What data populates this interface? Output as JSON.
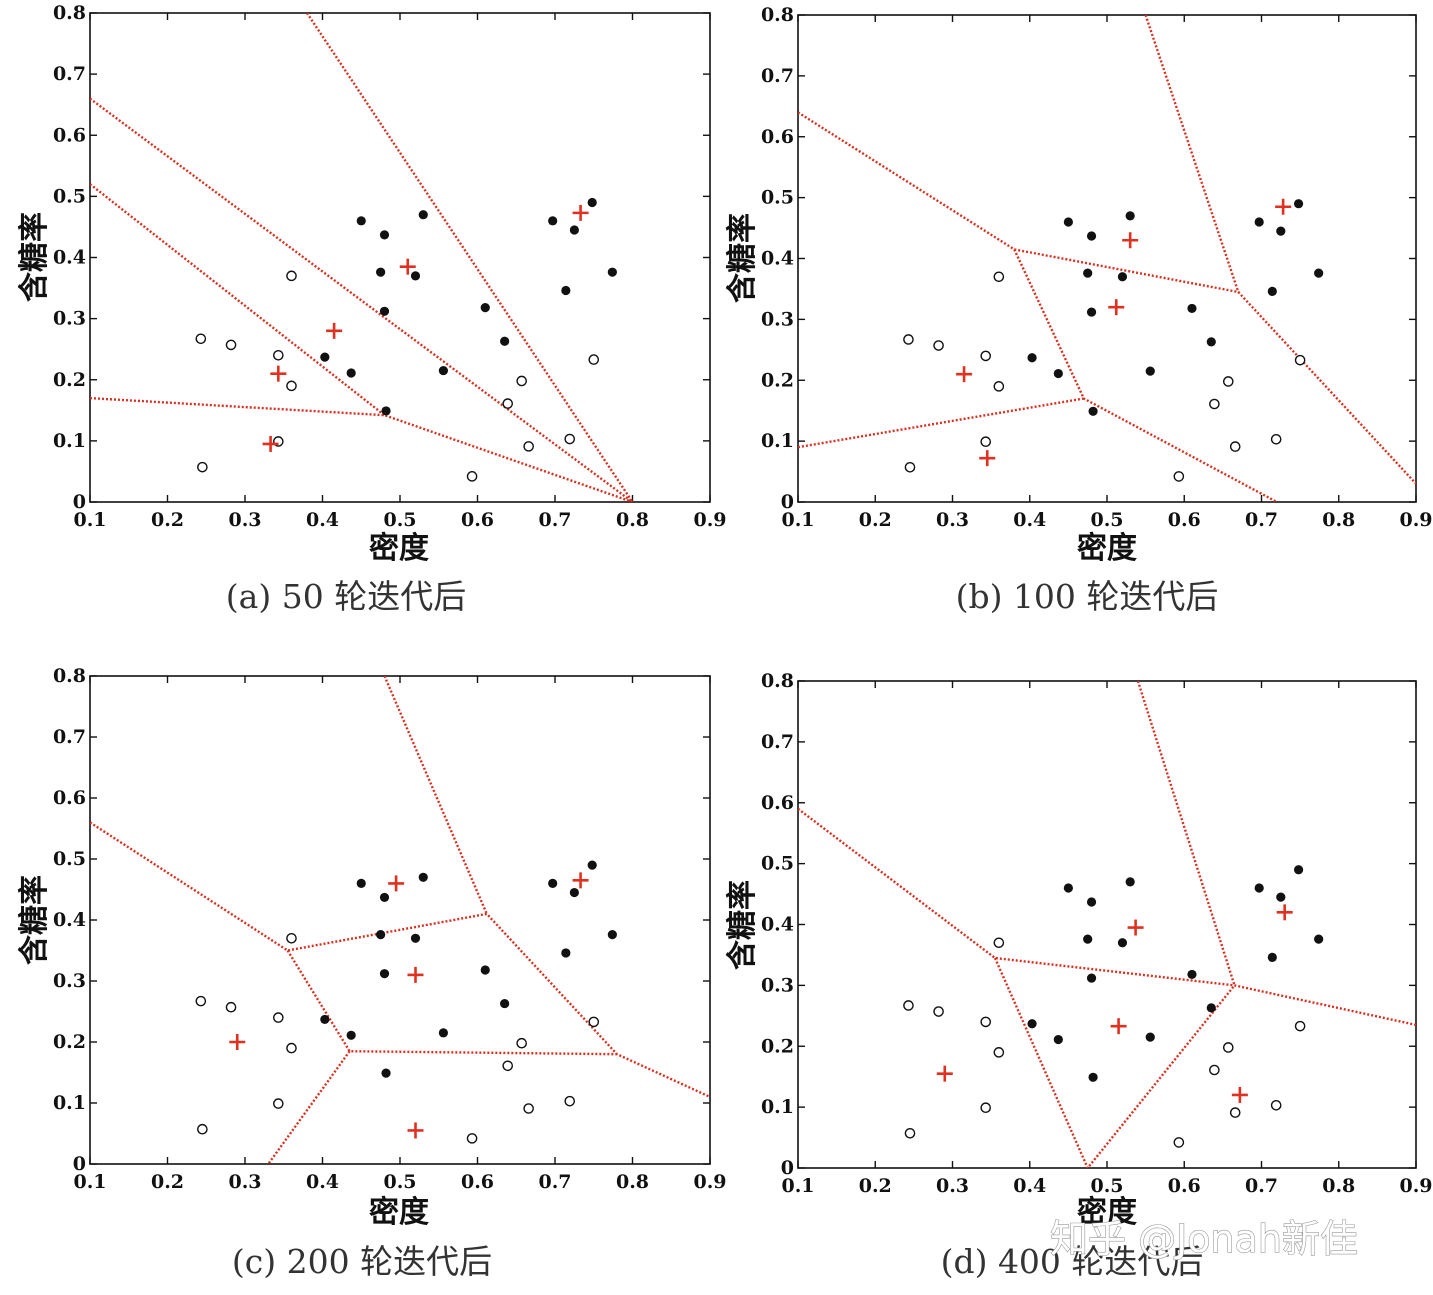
{
  "chart_data": [
    {
      "type": "scatter",
      "caption": "(a) 50 轮迭代后",
      "xlabel": "密度",
      "ylabel": "含糖率",
      "xlim": [
        0.1,
        0.9
      ],
      "ylim": [
        0,
        0.8
      ],
      "xticks": [
        "0.1",
        "0.2",
        "0.3",
        "0.4",
        "0.5",
        "0.6",
        "0.7",
        "0.8",
        "0.9"
      ],
      "yticks": [
        "0",
        "0.1",
        "0.2",
        "0.3",
        "0.4",
        "0.5",
        "0.6",
        "0.7",
        "0.8"
      ],
      "filled_points": [
        [
          0.45,
          0.46
        ],
        [
          0.48,
          0.437
        ],
        [
          0.53,
          0.47
        ],
        [
          0.475,
          0.376
        ],
        [
          0.52,
          0.37
        ],
        [
          0.48,
          0.312
        ],
        [
          0.61,
          0.318
        ],
        [
          0.635,
          0.263
        ],
        [
          0.403,
          0.237
        ],
        [
          0.437,
          0.211
        ],
        [
          0.556,
          0.215
        ],
        [
          0.482,
          0.149
        ],
        [
          0.697,
          0.46
        ],
        [
          0.725,
          0.445
        ],
        [
          0.748,
          0.49
        ],
        [
          0.714,
          0.346
        ],
        [
          0.774,
          0.376
        ]
      ],
      "open_points": [
        [
          0.243,
          0.267
        ],
        [
          0.282,
          0.257
        ],
        [
          0.36,
          0.37
        ],
        [
          0.343,
          0.24
        ],
        [
          0.36,
          0.19
        ],
        [
          0.245,
          0.057
        ],
        [
          0.343,
          0.099
        ],
        [
          0.593,
          0.042
        ],
        [
          0.657,
          0.198
        ],
        [
          0.639,
          0.161
        ],
        [
          0.666,
          0.091
        ],
        [
          0.719,
          0.103
        ],
        [
          0.75,
          0.233
        ]
      ],
      "centroids": [
        [
          0.343,
          0.21
        ],
        [
          0.333,
          0.095
        ],
        [
          0.415,
          0.28
        ],
        [
          0.51,
          0.385
        ],
        [
          0.733,
          0.473
        ]
      ],
      "boundaries": [
        [
          [
            0.1,
            0.17
          ],
          [
            0.48,
            0.142
          ],
          [
            0.8,
            0
          ]
        ],
        [
          [
            0.1,
            0.52
          ],
          [
            0.48,
            0.142
          ]
        ],
        [
          [
            0.1,
            0.66
          ],
          [
            0.8,
            0
          ]
        ],
        [
          [
            0.38,
            0.8
          ],
          [
            0.8,
            0
          ]
        ]
      ]
    },
    {
      "type": "scatter",
      "caption": "(b) 100 轮迭代后",
      "xlabel": "密度",
      "ylabel": "含糖率",
      "xlim": [
        0.1,
        0.9
      ],
      "ylim": [
        0,
        0.8
      ],
      "xticks": [
        "0.1",
        "0.2",
        "0.3",
        "0.4",
        "0.5",
        "0.6",
        "0.7",
        "0.8",
        "0.9"
      ],
      "yticks": [
        "0",
        "0.1",
        "0.2",
        "0.3",
        "0.4",
        "0.5",
        "0.6",
        "0.7",
        "0.8"
      ],
      "filled_points": [
        [
          0.45,
          0.46
        ],
        [
          0.48,
          0.437
        ],
        [
          0.53,
          0.47
        ],
        [
          0.475,
          0.376
        ],
        [
          0.52,
          0.37
        ],
        [
          0.48,
          0.312
        ],
        [
          0.61,
          0.318
        ],
        [
          0.635,
          0.263
        ],
        [
          0.403,
          0.237
        ],
        [
          0.437,
          0.211
        ],
        [
          0.556,
          0.215
        ],
        [
          0.482,
          0.149
        ],
        [
          0.697,
          0.46
        ],
        [
          0.725,
          0.445
        ],
        [
          0.748,
          0.49
        ],
        [
          0.714,
          0.346
        ],
        [
          0.774,
          0.376
        ]
      ],
      "open_points": [
        [
          0.243,
          0.267
        ],
        [
          0.282,
          0.257
        ],
        [
          0.36,
          0.37
        ],
        [
          0.343,
          0.24
        ],
        [
          0.36,
          0.19
        ],
        [
          0.245,
          0.057
        ],
        [
          0.343,
          0.099
        ],
        [
          0.593,
          0.042
        ],
        [
          0.657,
          0.198
        ],
        [
          0.639,
          0.161
        ],
        [
          0.666,
          0.091
        ],
        [
          0.719,
          0.103
        ],
        [
          0.75,
          0.233
        ]
      ],
      "centroids": [
        [
          0.315,
          0.21
        ],
        [
          0.345,
          0.072
        ],
        [
          0.512,
          0.32
        ],
        [
          0.53,
          0.43
        ],
        [
          0.728,
          0.485
        ]
      ],
      "boundaries": [
        [
          [
            0.1,
            0.64
          ],
          [
            0.38,
            0.415
          ],
          [
            0.67,
            0.345
          ],
          [
            0.9,
            0.03
          ]
        ],
        [
          [
            0.55,
            0.8
          ],
          [
            0.67,
            0.345
          ]
        ],
        [
          [
            0.38,
            0.415
          ],
          [
            0.47,
            0.17
          ],
          [
            0.72,
            0
          ]
        ],
        [
          [
            0.1,
            0.09
          ],
          [
            0.47,
            0.17
          ]
        ]
      ]
    },
    {
      "type": "scatter",
      "caption": "(c) 200 轮迭代后",
      "xlabel": "密度",
      "ylabel": "含糖率",
      "xlim": [
        0.1,
        0.9
      ],
      "ylim": [
        0,
        0.8
      ],
      "xticks": [
        "0.1",
        "0.2",
        "0.3",
        "0.4",
        "0.5",
        "0.6",
        "0.7",
        "0.8",
        "0.9"
      ],
      "yticks": [
        "0",
        "0.1",
        "0.2",
        "0.3",
        "0.4",
        "0.5",
        "0.6",
        "0.7",
        "0.8"
      ],
      "filled_points": [
        [
          0.45,
          0.46
        ],
        [
          0.48,
          0.437
        ],
        [
          0.53,
          0.47
        ],
        [
          0.475,
          0.376
        ],
        [
          0.52,
          0.37
        ],
        [
          0.48,
          0.312
        ],
        [
          0.61,
          0.318
        ],
        [
          0.635,
          0.263
        ],
        [
          0.403,
          0.237
        ],
        [
          0.437,
          0.211
        ],
        [
          0.556,
          0.215
        ],
        [
          0.482,
          0.149
        ],
        [
          0.697,
          0.46
        ],
        [
          0.725,
          0.445
        ],
        [
          0.748,
          0.49
        ],
        [
          0.714,
          0.346
        ],
        [
          0.774,
          0.376
        ]
      ],
      "open_points": [
        [
          0.243,
          0.267
        ],
        [
          0.282,
          0.257
        ],
        [
          0.36,
          0.37
        ],
        [
          0.343,
          0.24
        ],
        [
          0.36,
          0.19
        ],
        [
          0.245,
          0.057
        ],
        [
          0.343,
          0.099
        ],
        [
          0.593,
          0.042
        ],
        [
          0.657,
          0.198
        ],
        [
          0.639,
          0.161
        ],
        [
          0.666,
          0.091
        ],
        [
          0.719,
          0.103
        ],
        [
          0.75,
          0.233
        ]
      ],
      "centroids": [
        [
          0.29,
          0.2
        ],
        [
          0.52,
          0.055
        ],
        [
          0.52,
          0.31
        ],
        [
          0.495,
          0.46
        ],
        [
          0.733,
          0.465
        ]
      ],
      "boundaries": [
        [
          [
            0.1,
            0.56
          ],
          [
            0.355,
            0.35
          ],
          [
            0.612,
            0.41
          ],
          [
            0.78,
            0.18
          ],
          [
            0.9,
            0.11
          ]
        ],
        [
          [
            0.48,
            0.8
          ],
          [
            0.612,
            0.41
          ]
        ],
        [
          [
            0.355,
            0.35
          ],
          [
            0.435,
            0.185
          ],
          [
            0.78,
            0.18
          ]
        ],
        [
          [
            0.435,
            0.185
          ],
          [
            0.33,
            0
          ]
        ]
      ]
    },
    {
      "type": "scatter",
      "caption": "(d) 400 轮迭代后",
      "xlabel": "密度",
      "ylabel": "含糖率",
      "xlim": [
        0.1,
        0.9
      ],
      "ylim": [
        0,
        0.8
      ],
      "xticks": [
        "0.1",
        "0.2",
        "0.3",
        "0.4",
        "0.5",
        "0.6",
        "0.7",
        "0.8",
        "0.9"
      ],
      "yticks": [
        "0",
        "0.1",
        "0.2",
        "0.3",
        "0.4",
        "0.5",
        "0.6",
        "0.7",
        "0.8"
      ],
      "filled_points": [
        [
          0.45,
          0.46
        ],
        [
          0.48,
          0.437
        ],
        [
          0.53,
          0.47
        ],
        [
          0.475,
          0.376
        ],
        [
          0.52,
          0.37
        ],
        [
          0.48,
          0.312
        ],
        [
          0.61,
          0.318
        ],
        [
          0.635,
          0.263
        ],
        [
          0.403,
          0.237
        ],
        [
          0.437,
          0.211
        ],
        [
          0.556,
          0.215
        ],
        [
          0.482,
          0.149
        ],
        [
          0.697,
          0.46
        ],
        [
          0.725,
          0.445
        ],
        [
          0.748,
          0.49
        ],
        [
          0.714,
          0.346
        ],
        [
          0.774,
          0.376
        ]
      ],
      "open_points": [
        [
          0.243,
          0.267
        ],
        [
          0.282,
          0.257
        ],
        [
          0.36,
          0.37
        ],
        [
          0.343,
          0.24
        ],
        [
          0.36,
          0.19
        ],
        [
          0.245,
          0.057
        ],
        [
          0.343,
          0.099
        ],
        [
          0.593,
          0.042
        ],
        [
          0.657,
          0.198
        ],
        [
          0.639,
          0.161
        ],
        [
          0.666,
          0.091
        ],
        [
          0.719,
          0.103
        ],
        [
          0.75,
          0.233
        ]
      ],
      "centroids": [
        [
          0.29,
          0.155
        ],
        [
          0.515,
          0.233
        ],
        [
          0.537,
          0.395
        ],
        [
          0.672,
          0.12
        ],
        [
          0.73,
          0.42
        ]
      ],
      "boundaries": [
        [
          [
            0.1,
            0.59
          ],
          [
            0.355,
            0.345
          ],
          [
            0.665,
            0.3
          ],
          [
            0.9,
            0.235
          ]
        ],
        [
          [
            0.54,
            0.8
          ],
          [
            0.665,
            0.3
          ]
        ],
        [
          [
            0.355,
            0.345
          ],
          [
            0.475,
            0
          ],
          [
            0.665,
            0.3
          ]
        ]
      ]
    }
  ],
  "watermark": "知乎 @Jonah新佳",
  "colors": {
    "centroid": "#e03020",
    "boundary": "#d83020",
    "point": "#111111",
    "frame": "#111111"
  }
}
